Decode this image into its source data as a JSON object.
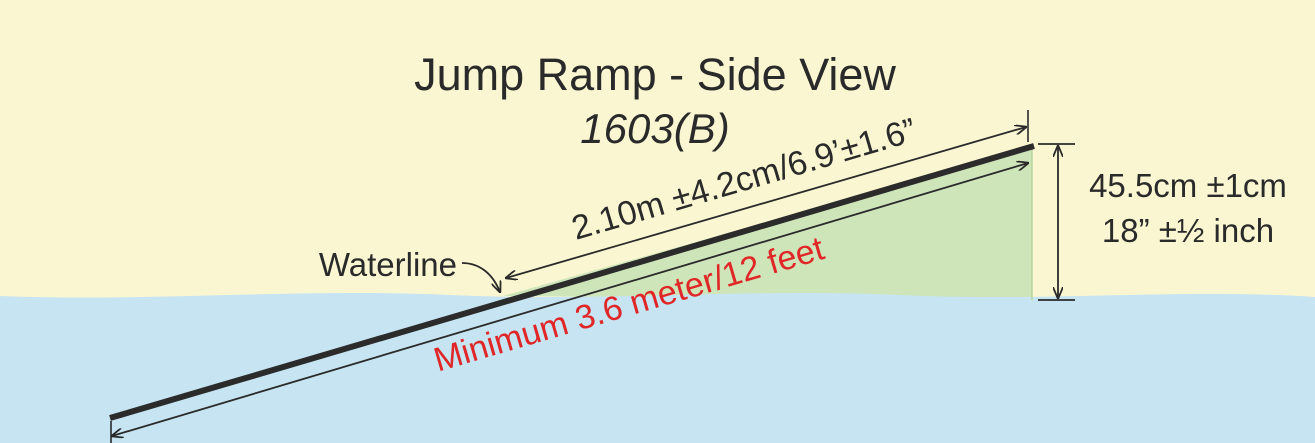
{
  "colors": {
    "sky": "#fbf6d2",
    "water": "#c6e4f2",
    "ramp_fill": "#cee4b9",
    "ramp_edge": "#2b2b2b",
    "text": "#2a2a2a",
    "red": "#e02626"
  },
  "title": "Jump Ramp - Side View",
  "subtitle": "1603(B)",
  "waterline_label": "Waterline",
  "length_above_water": "2.10m ±4.2cm/6.9’±1.6”",
  "height_metric": "45.5cm ±1cm",
  "height_imperial": "18” ±½ inch",
  "minimum_length": "Minimum 3.6 meter/12 feet"
}
